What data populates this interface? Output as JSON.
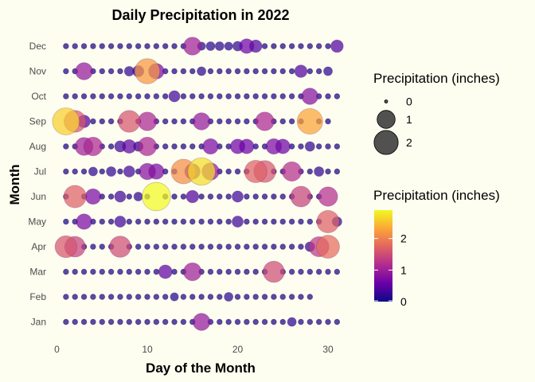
{
  "chart_data": {
    "type": "scatter",
    "title": "Daily Precipitation in 2022",
    "xlabel": "Day of the Month",
    "ylabel": "Month",
    "xlim": [
      0,
      31
    ],
    "xticks": [
      0,
      10,
      20,
      30
    ],
    "months": [
      "Jan",
      "Feb",
      "Mar",
      "Apr",
      "May",
      "Jun",
      "Jul",
      "Aug",
      "Sep",
      "Oct",
      "Nov",
      "Dec"
    ],
    "days_in_month": [
      31,
      28,
      31,
      30,
      31,
      30,
      31,
      31,
      30,
      31,
      30,
      31
    ],
    "base_precip": 0.02,
    "precip": {
      "Jan": {
        "16": 0.9,
        "26": 0.15,
        "31": 0.02
      },
      "Feb": {
        "13": 0.12,
        "19": 0.15
      },
      "Mar": {
        "12": 0.5,
        "15": 1.0,
        "24": 1.5
      },
      "Apr": {
        "1": 1.6,
        "2": 1.4,
        "7": 1.5,
        "28": 0.2,
        "29": 1.3,
        "30": 1.8
      },
      "May": {
        "3": 0.7,
        "7": 0.3,
        "20": 0.3,
        "30": 1.7,
        "31": 0.2
      },
      "Jun": {
        "2": 1.7,
        "4": 0.7,
        "7": 0.3,
        "9": 0.15,
        "11": 2.9,
        "15": 0.4,
        "20": 0.3,
        "27": 1.4,
        "30": 1.2
      },
      "Jul": {
        "4": 0.15,
        "6": 0.2,
        "8": 0.3,
        "10": 0.8,
        "11": 0.7,
        "14": 2.1,
        "15": 0.7,
        "16": 2.7,
        "17": 0.9,
        "22": 1.7,
        "23": 1.6,
        "26": 1.2,
        "29": 0.2
      },
      "Aug": {
        "3": 1.0,
        "4": 1.1,
        "7": 0.3,
        "8": 0.5,
        "9": 0.2,
        "10": 1.1,
        "17": 0.7,
        "20": 0.6,
        "21": 0.6,
        "24": 0.7,
        "25": 0.6,
        "28": 0.2
      },
      "Sep": {
        "1": 2.6,
        "2": 1.6,
        "3": 0.4,
        "8": 1.6,
        "10": 1.1,
        "16": 0.9,
        "23": 1.1,
        "28": 2.3
      },
      "Oct": {
        "13": 0.3,
        "28": 0.8
      },
      "Nov": {
        "3": 0.9,
        "8": 0.2,
        "9": 0.3,
        "10": 2.2,
        "11": 0.7,
        "16": 0.15,
        "27": 0.4,
        "30": 0.15
      },
      "Dec": {
        "15": 1.0,
        "16": 0.12,
        "17": 0.15,
        "18": 0.15,
        "19": 0.12,
        "20": 0.2,
        "21": 0.6,
        "22": 0.4,
        "31": 0.4
      }
    },
    "size_legend": {
      "title": "Precipitation (inches)",
      "labels": [
        "0",
        "1",
        "2"
      ],
      "values": [
        0,
        1,
        2
      ]
    },
    "color_legend": {
      "title": "Precipitation (inches)",
      "labels": [
        "0",
        "1",
        "2"
      ],
      "values": [
        0,
        1,
        2
      ],
      "max": 2.9
    },
    "colors": {
      "background": "#fdfdf0",
      "stops": [
        "#0d0887",
        "#6a00a8",
        "#b12a90",
        "#e16462",
        "#fca636",
        "#f0f921"
      ],
      "outline": "#4b0c6b"
    }
  }
}
